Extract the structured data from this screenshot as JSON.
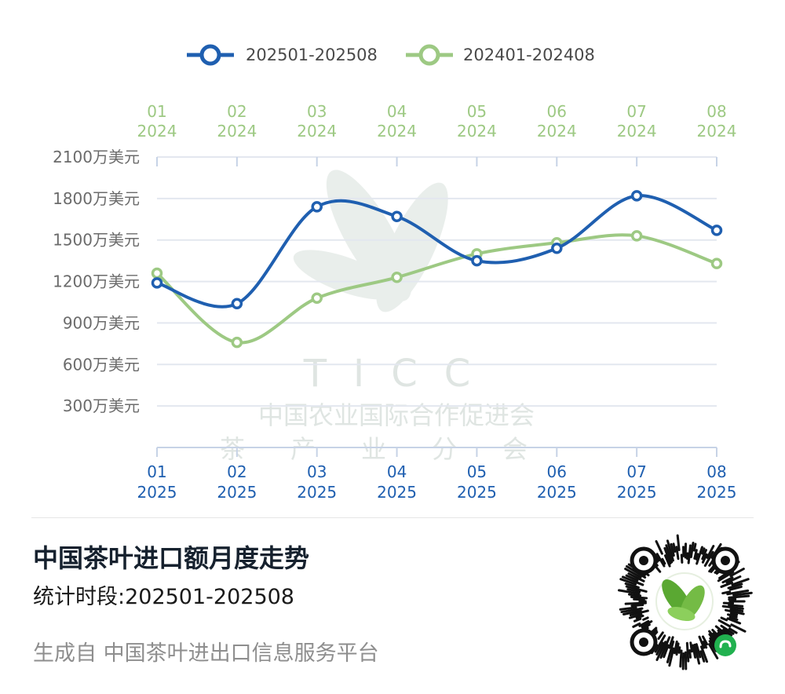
{
  "colors": {
    "series_2025": "#1f5fb0",
    "series_2024": "#9dc983",
    "grid": "#e3e7ef",
    "axis": "#c7d3e6",
    "title": "#16212e",
    "source": "#8e8e8e"
  },
  "chart_data": {
    "type": "line",
    "title": "",
    "xlabel": "",
    "ylabel": "",
    "y_unit": "万美元",
    "ylim": [
      0,
      2100
    ],
    "yticks": [
      300,
      600,
      900,
      1200,
      1500,
      1800,
      2100
    ],
    "ytick_labels": [
      "300万美元",
      "600万美元",
      "900万美元",
      "1200万美元",
      "1500万美元",
      "1800万美元",
      "2100万美元"
    ],
    "grid": true,
    "smooth": true,
    "legend_position": "top-center",
    "x_top": [
      {
        "month": "01",
        "year": "2024"
      },
      {
        "month": "02",
        "year": "2024"
      },
      {
        "month": "03",
        "year": "2024"
      },
      {
        "month": "04",
        "year": "2024"
      },
      {
        "month": "05",
        "year": "2024"
      },
      {
        "month": "06",
        "year": "2024"
      },
      {
        "month": "07",
        "year": "2024"
      },
      {
        "month": "08",
        "year": "2024"
      }
    ],
    "x_bottom": [
      {
        "month": "01",
        "year": "2025"
      },
      {
        "month": "02",
        "year": "2025"
      },
      {
        "month": "03",
        "year": "2025"
      },
      {
        "month": "04",
        "year": "2025"
      },
      {
        "month": "05",
        "year": "2025"
      },
      {
        "month": "06",
        "year": "2025"
      },
      {
        "month": "07",
        "year": "2025"
      },
      {
        "month": "08",
        "year": "2025"
      }
    ],
    "series": [
      {
        "name": "202501-202508",
        "color": "#1f5fb0",
        "axis": "bottom",
        "values": [
          1190,
          1040,
          1740,
          1670,
          1350,
          1440,
          1820,
          1570
        ]
      },
      {
        "name": "202401-202408",
        "color": "#9dc983",
        "axis": "top",
        "values": [
          1260,
          760,
          1080,
          1230,
          1400,
          1480,
          1530,
          1330
        ]
      }
    ]
  },
  "watermark": {
    "abbrev": "TICC",
    "org_line": "中国农业国际合作促进会",
    "division_line": "茶产业分会"
  },
  "footer": {
    "title": "中国茶叶进口额月度走势",
    "period": "统计时段:202501-202508",
    "source": "生成自 中国茶叶进出口信息服务平台"
  },
  "qr_icon": "mini-program-qr-code-with-tea-leaf-logo"
}
